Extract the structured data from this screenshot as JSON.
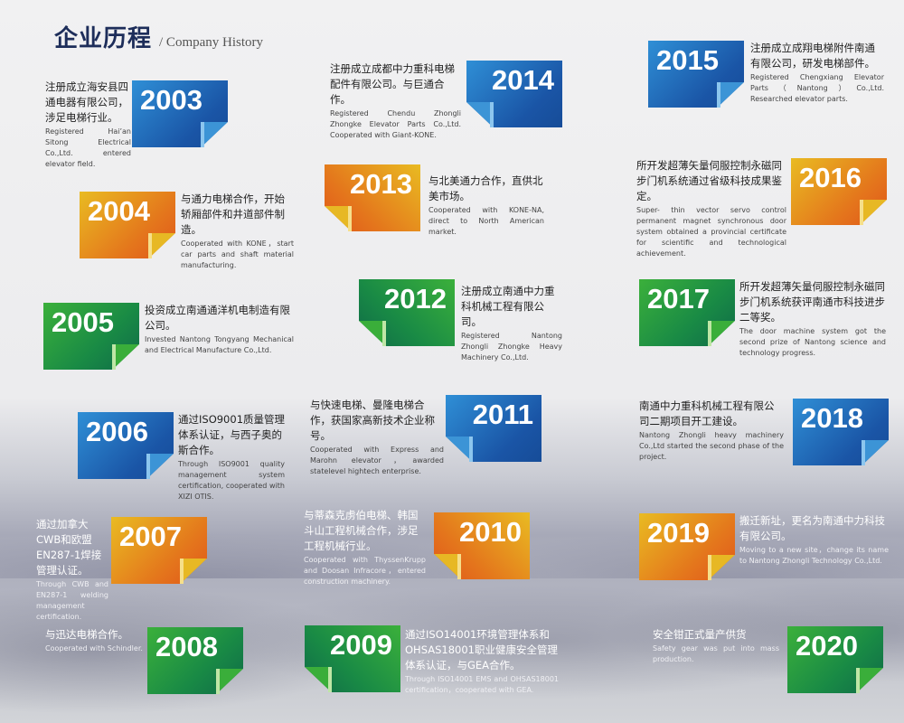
{
  "header": {
    "title_zh": "企业历程",
    "title_en": "/ Company History"
  },
  "milestones": [
    {
      "year": "2003",
      "theme": "blue",
      "fold": "br",
      "zh": "注册成立海安县四通电器有限公司，涉足电梯行业。",
      "en": "Registered Hai’an Sitong Electrical Co.,Ltd. entered elevator field."
    },
    {
      "year": "2004",
      "theme": "orange",
      "fold": "br",
      "zh": "与通力电梯合作，开始轿厢部件和井道部件制造。",
      "en": "Cooperated with KONE，start car parts and shaft material manufacturing."
    },
    {
      "year": "2005",
      "theme": "green",
      "fold": "br",
      "zh": "投资成立南通通洋机电制造有限公司。",
      "en": "Invested Nantong Tongyang Mechanical and Electrical Manufacture Co.,Ltd."
    },
    {
      "year": "2006",
      "theme": "blue",
      "fold": "br",
      "zh": "通过ISO9001质量管理体系认证，与西子奥的斯合作。",
      "en": "Through ISO9001 quality management system certification, cooperated with XIZI OTIS."
    },
    {
      "year": "2007",
      "theme": "orange",
      "fold": "br",
      "zh": "通过加拿大CWB和欧盟EN287-1焊接管理认证。",
      "en": "Through CWB and EN287-1 welding management certification."
    },
    {
      "year": "2008",
      "theme": "green",
      "fold": "br",
      "zh": "与迅达电梯合作。",
      "en": "Cooperated with Schindler."
    },
    {
      "year": "2014",
      "theme": "blue",
      "fold": "bl",
      "zh": "注册成立成都中力重科电梯配件有限公司。与巨通合作。",
      "en": "Registered Chendu Zhongli Zhongke Elevator Parts Co.,Ltd. Cooperated with Giant-KONE."
    },
    {
      "year": "2013",
      "theme": "orange",
      "fold": "bl",
      "zh": "与北美通力合作，直供北美市场。",
      "en": "Cooperated with KONE-NA, direct to North American market."
    },
    {
      "year": "2012",
      "theme": "green",
      "fold": "bl",
      "zh": "注册成立南通中力重科机械工程有限公司。",
      "en": "Registered Nantong Zhongli Zhongke Heavy Machinery Co.,Ltd."
    },
    {
      "year": "2011",
      "theme": "blue",
      "fold": "bl",
      "zh": "与快速电梯、曼隆电梯合作，获国家高新技术企业称号。",
      "en": "Cooperated with Express and Marohn elevator，awarded statelevel hightech enterprise."
    },
    {
      "year": "2010",
      "theme": "orange",
      "fold": "bl",
      "zh": "与蒂森克虏伯电梯、韩国斗山工程机械合作，涉足工程机械行业。",
      "en": "Cooperated with ThyssenKrupp and Doosan Infracore，entered construction machinery."
    },
    {
      "year": "2009",
      "theme": "green",
      "fold": "bl",
      "zh": "通过ISO14001环境管理体系和OHSAS18001职业健康安全管理体系认证，与GEA合作。",
      "en": "Through ISO14001 EMS and OHSAS18001 certification，cooperated with GEA."
    },
    {
      "year": "2015",
      "theme": "blue",
      "fold": "br",
      "zh": "注册成立成翔电梯附件南通有限公司，研发电梯部件。",
      "en": "Registered Chengxiang Elevator Parts（Nantong）Co.,Ltd. Researched elevator parts."
    },
    {
      "year": "2016",
      "theme": "orange",
      "fold": "br",
      "zh": "所开发超薄矢量伺服控制永磁同步门机系统通过省级科技成果鉴定。",
      "en": "Super- thin vector servo control permanent magnet synchronous door system obtained a provincial certificate for scientific and technological achievement."
    },
    {
      "year": "2017",
      "theme": "green",
      "fold": "br",
      "zh": "所开发超薄矢量伺服控制永磁同步门机系统获评南通市科技进步二等奖。",
      "en": "The door machine system got the second prize of Nantong science and technology progress."
    },
    {
      "year": "2018",
      "theme": "blue",
      "fold": "br",
      "zh": "南通中力重科机械工程有限公司二期项目开工建设。",
      "en": "Nantong Zhongli heavy machinery Co.,Ltd started the second phase of the project."
    },
    {
      "year": "2019",
      "theme": "orange",
      "fold": "br",
      "zh": "搬迁新址，更名为南通中力科技有限公司。",
      "en": "Moving to a new site，change its name to Nantong Zhongli Technology Co.,Ltd."
    },
    {
      "year": "2020",
      "theme": "green",
      "fold": "br",
      "zh": "安全钳正式量产供货",
      "en": "Safety gear was put into mass production."
    }
  ],
  "colors": {
    "blue": "#1a55a6",
    "orange": "#e4761c",
    "yellow": "#e9bb22",
    "green": "#198a45",
    "title": "#1d2d5a"
  }
}
